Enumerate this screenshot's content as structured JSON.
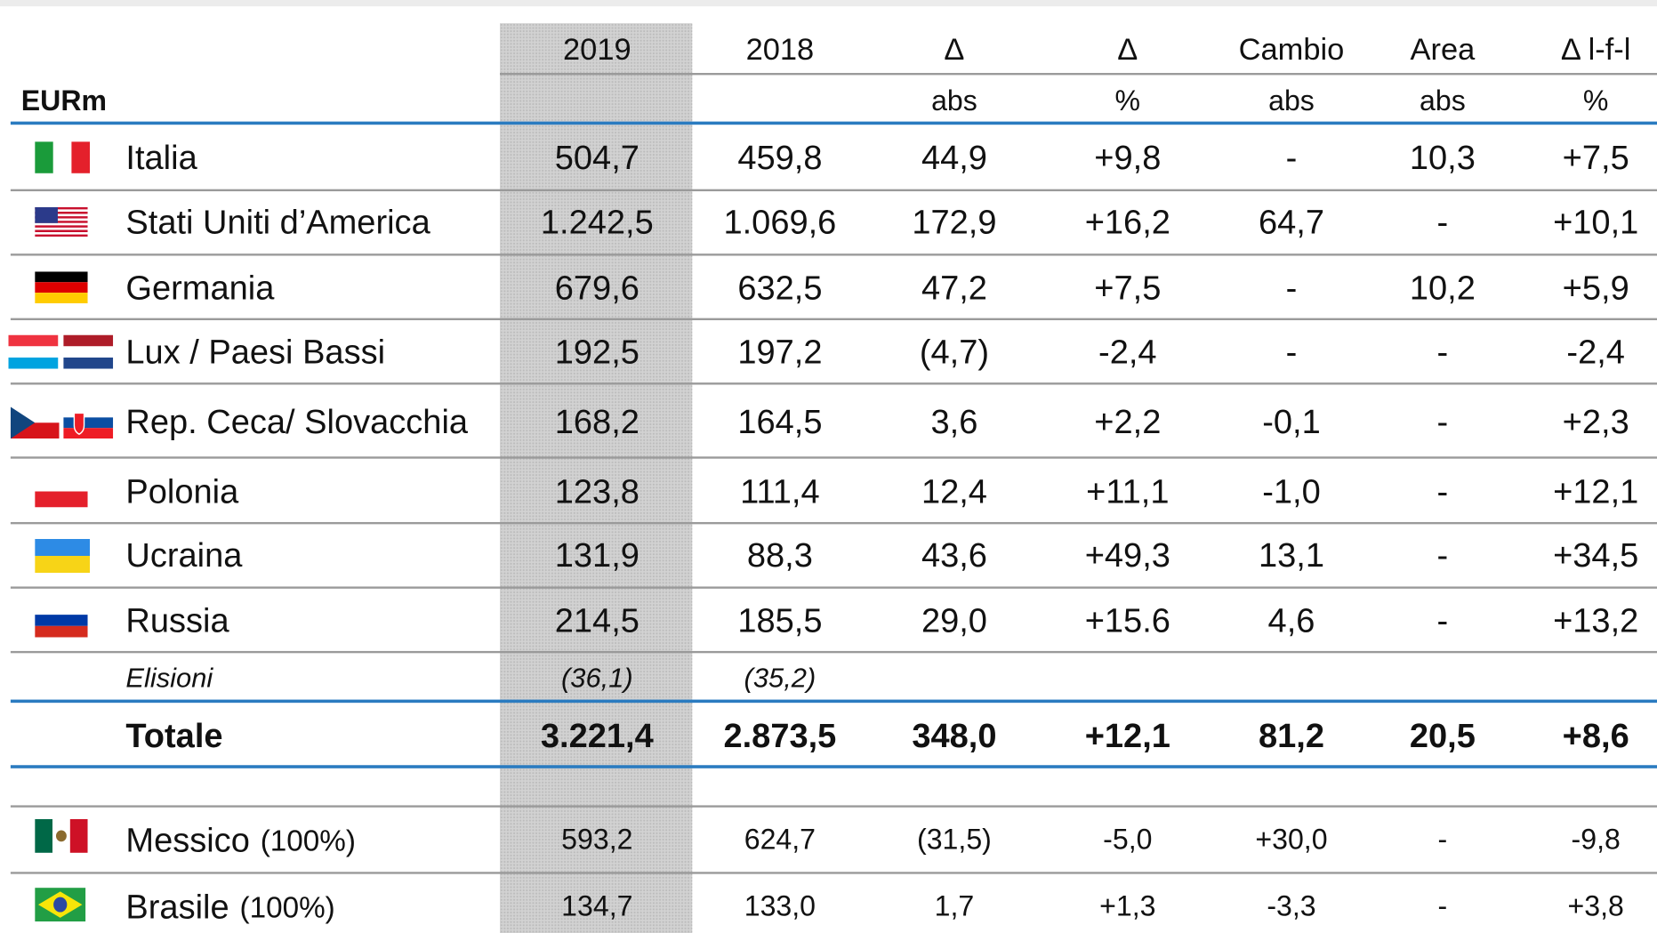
{
  "header": {
    "unit": "EURm",
    "columns": [
      {
        "top": "2019"
      },
      {
        "top": "2018"
      },
      {
        "top": "Δ",
        "bottom": "abs"
      },
      {
        "top": "Δ",
        "bottom": "%"
      },
      {
        "top": "Cambio",
        "bottom": "abs"
      },
      {
        "top": "Area",
        "bottom": "abs"
      },
      {
        "top": "Δ l-f-l",
        "bottom": "%"
      }
    ]
  },
  "rows": [
    {
      "name": "Italia",
      "values": [
        "504,7",
        "459,8",
        "44,9",
        "+9,8",
        "-",
        "10,3",
        "+7,5"
      ]
    },
    {
      "name": "Stati Uniti d’America",
      "values": [
        "1.242,5",
        "1.069,6",
        "172,9",
        "+16,2",
        "64,7",
        "-",
        "+10,1"
      ]
    },
    {
      "name": "Germania",
      "values": [
        "679,6",
        "632,5",
        "47,2",
        "+7,5",
        "-",
        "10,2",
        "+5,9"
      ]
    },
    {
      "name": "Lux / Paesi Bassi",
      "values": [
        "192,5",
        "197,2",
        "(4,7)",
        "-2,4",
        "-",
        "-",
        "-2,4"
      ]
    },
    {
      "name": "Rep. Ceca/ Slovacchia",
      "values": [
        "168,2",
        "164,5",
        "3,6",
        "+2,2",
        "-0,1",
        "-",
        "+2,3"
      ]
    },
    {
      "name": "Polonia",
      "values": [
        "123,8",
        "111,4",
        "12,4",
        "+11,1",
        "-1,0",
        "-",
        "+12,1"
      ]
    },
    {
      "name": "Ucraina",
      "values": [
        "131,9",
        "88,3",
        "43,6",
        "+49,3",
        "13,1",
        "-",
        "+34,5"
      ]
    },
    {
      "name": "Russia",
      "values": [
        "214,5",
        "185,5",
        "29,0",
        "+15.6",
        "4,6",
        "-",
        "+13,2"
      ]
    }
  ],
  "elisioni": {
    "name": "Elisioni",
    "values": [
      "(36,1)",
      "(35,2)"
    ]
  },
  "totale": {
    "name": "Totale",
    "values": [
      "3.221,4",
      "2.873,5",
      "348,0",
      "+12,1",
      "81,2",
      "20,5",
      "+8,6"
    ]
  },
  "altri": [
    {
      "name": "Messico",
      "note": "(100%)",
      "values": [
        "593,2",
        "624,7",
        "(31,5)",
        "-5,0",
        "+30,0",
        "-",
        "-9,8"
      ]
    },
    {
      "name": "Brasile",
      "note": "(100%)",
      "values": [
        "134,7",
        "133,0",
        "1,7",
        "+1,3",
        "-3,3",
        "-",
        "+3,8"
      ]
    }
  ]
}
